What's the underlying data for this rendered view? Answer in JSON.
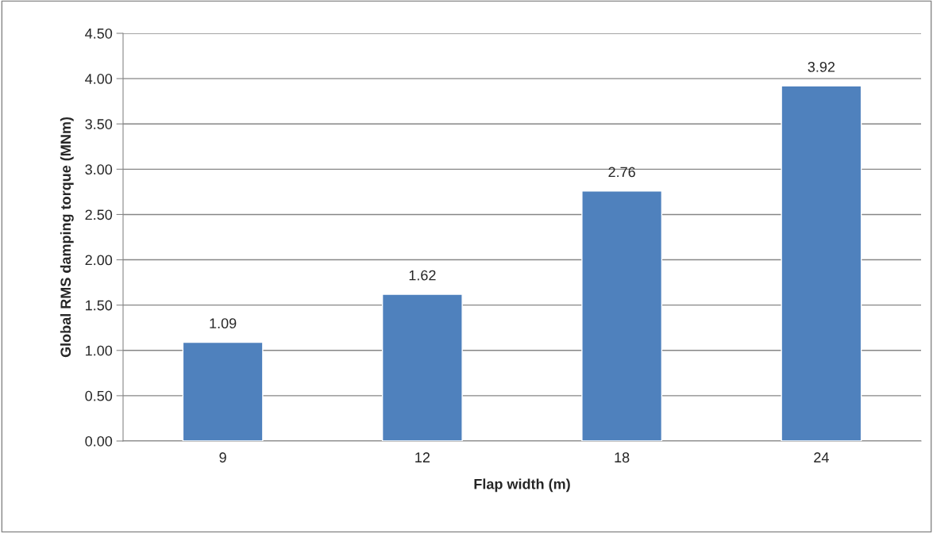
{
  "chart_data": {
    "type": "bar",
    "xlabel": "Flap width (m)",
    "ylabel": "Global RMS damping torque (MNm)",
    "categories": [
      "9",
      "12",
      "18",
      "24"
    ],
    "values": [
      1.09,
      1.62,
      2.76,
      3.92
    ],
    "color": "#4f81bd",
    "ylim": [
      0,
      4.5
    ],
    "yticks": [
      {
        "value": 0,
        "label": "0.00"
      },
      {
        "value": 0.5,
        "label": "0.50"
      },
      {
        "value": 1,
        "label": "1.00"
      },
      {
        "value": 1.5,
        "label": "1.50"
      },
      {
        "value": 2,
        "label": "2.00"
      },
      {
        "value": 2.5,
        "label": "2.50"
      },
      {
        "value": 3,
        "label": "3.00"
      },
      {
        "value": 3.5,
        "label": "3.50"
      },
      {
        "value": 4,
        "label": "4.00"
      },
      {
        "value": 4.5,
        "label": "4.50"
      }
    ],
    "grid": "y",
    "data_labels": true
  }
}
